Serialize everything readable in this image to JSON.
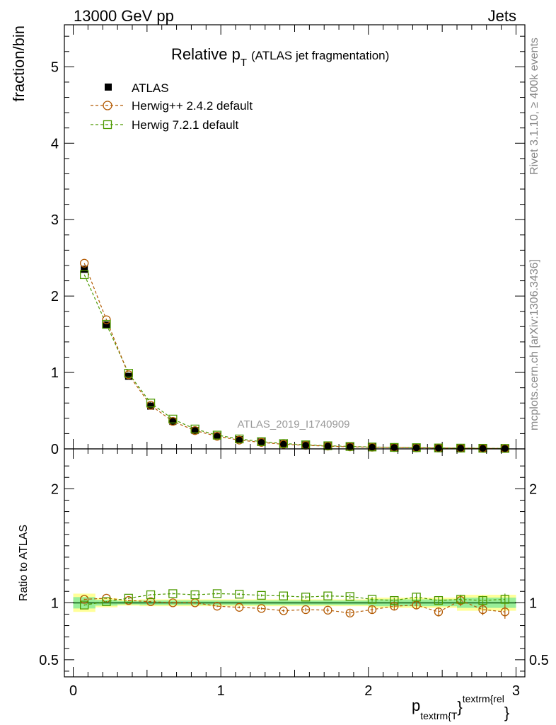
{
  "header": {
    "left": "13000 GeV pp",
    "right": "Jets"
  },
  "side_labels": {
    "rivet": "Rivet 3.1.10, ≥ 400k events",
    "mcplots": "mcplots.cern.ch [arXiv:1306.3436]"
  },
  "chart_data": [
    {
      "type": "scatter",
      "title_main": "Relative p",
      "title_sub": "T",
      "title_paren": "(ATLAS jet fragmentation)",
      "watermark": "ATLAS_2019_I1740909",
      "ylabel": "fraction/bin",
      "xlim": [
        -0.06,
        3.06
      ],
      "ylim": [
        0,
        5.55
      ],
      "yticks": [
        0,
        1,
        2,
        3,
        4,
        5
      ],
      "ytick_labels": [
        "0",
        "1",
        "2",
        "3",
        "4",
        "5"
      ],
      "x": [
        0.075,
        0.225,
        0.375,
        0.525,
        0.675,
        0.825,
        0.975,
        1.125,
        1.275,
        1.425,
        1.575,
        1.725,
        1.875,
        2.025,
        2.175,
        2.325,
        2.475,
        2.625,
        2.775,
        2.925
      ],
      "series": [
        {
          "name": "ATLAS",
          "color": "#000000",
          "marker": "filled-square",
          "values": [
            2.35,
            1.62,
            0.95,
            0.56,
            0.36,
            0.24,
            0.17,
            0.12,
            0.09,
            0.065,
            0.05,
            0.038,
            0.03,
            0.024,
            0.019,
            0.015,
            0.012,
            0.01,
            0.008,
            0.006
          ]
        },
        {
          "name": "Herwig++ 2.4.2 default",
          "color": "#b35900",
          "marker": "open-circle",
          "values": [
            2.43,
            1.69,
            0.97,
            0.57,
            0.36,
            0.24,
            0.165,
            0.115,
            0.085,
            0.06,
            0.047,
            0.036,
            0.027,
            0.022,
            0.018,
            0.014,
            0.011,
            0.009,
            0.007,
            0.005
          ]
        },
        {
          "name": "Herwig 7.2.1 default",
          "color": "#4d9900",
          "marker": "open-square",
          "values": [
            2.28,
            1.63,
            0.99,
            0.6,
            0.39,
            0.26,
            0.18,
            0.13,
            0.095,
            0.07,
            0.053,
            0.041,
            0.032,
            0.025,
            0.019,
            0.016,
            0.012,
            0.01,
            0.008,
            0.006
          ]
        }
      ]
    },
    {
      "type": "scatter",
      "ylabel": "Ratio to ATLAS",
      "xlabel_main": "p",
      "xlabel_sub": "textrm{T",
      "xlabel_brace": "}",
      "xlabel_sup": "textrm{rel",
      "xlabel_end": "}",
      "xlim": [
        -0.06,
        3.06
      ],
      "ylim": [
        0.35,
        2.35
      ],
      "xticks": [
        0,
        1,
        2,
        3
      ],
      "xtick_labels": [
        "0",
        "1",
        "2",
        "3"
      ],
      "yticks": [
        0.5,
        1,
        2
      ],
      "ytick_labels": [
        "0.5",
        "1",
        "2"
      ],
      "reference": 1.0,
      "band_yellow": [
        {
          "x0": 0.0,
          "x1": 0.15,
          "lo": 0.92,
          "hi": 1.08
        },
        {
          "x0": 0.15,
          "x1": 0.3,
          "lo": 0.96,
          "hi": 1.04
        },
        {
          "x0": 0.3,
          "x1": 0.45,
          "lo": 0.975,
          "hi": 1.025
        },
        {
          "x0": 0.45,
          "x1": 2.0,
          "lo": 0.97,
          "hi": 1.03
        },
        {
          "x0": 2.0,
          "x1": 2.6,
          "lo": 0.955,
          "hi": 1.045
        },
        {
          "x0": 2.6,
          "x1": 3.0,
          "lo": 0.93,
          "hi": 1.07
        }
      ],
      "band_green": [
        {
          "x0": 0.0,
          "x1": 0.15,
          "lo": 0.95,
          "hi": 1.05
        },
        {
          "x0": 0.15,
          "x1": 0.3,
          "lo": 0.975,
          "hi": 1.025
        },
        {
          "x0": 0.3,
          "x1": 0.45,
          "lo": 0.985,
          "hi": 1.015
        },
        {
          "x0": 0.45,
          "x1": 2.0,
          "lo": 0.98,
          "hi": 1.02
        },
        {
          "x0": 2.0,
          "x1": 2.6,
          "lo": 0.97,
          "hi": 1.03
        },
        {
          "x0": 2.6,
          "x1": 3.0,
          "lo": 0.955,
          "hi": 1.045
        }
      ],
      "x": [
        0.075,
        0.225,
        0.375,
        0.525,
        0.675,
        0.825,
        0.975,
        1.125,
        1.275,
        1.425,
        1.575,
        1.725,
        1.875,
        2.025,
        2.175,
        2.325,
        2.475,
        2.625,
        2.775,
        2.925
      ],
      "series": [
        {
          "name": "Herwig++ 2.4.2 default",
          "color": "#b35900",
          "marker": "open-circle",
          "values": [
            1.03,
            1.04,
            1.02,
            1.01,
            1.0,
            1.0,
            0.97,
            0.96,
            0.95,
            0.93,
            0.94,
            0.935,
            0.91,
            0.94,
            0.97,
            0.98,
            0.92,
            1.02,
            0.94,
            0.92
          ],
          "errors": [
            0.005,
            0.005,
            0.006,
            0.006,
            0.007,
            0.008,
            0.008,
            0.009,
            0.01,
            0.012,
            0.015,
            0.02,
            0.025,
            0.03,
            0.03,
            0.035,
            0.04,
            0.05,
            0.05,
            0.06
          ]
        },
        {
          "name": "Herwig 7.2.1 default",
          "color": "#4d9900",
          "marker": "open-square",
          "values": [
            0.98,
            1.01,
            1.04,
            1.07,
            1.08,
            1.07,
            1.08,
            1.075,
            1.065,
            1.06,
            1.05,
            1.06,
            1.055,
            1.03,
            1.02,
            1.05,
            1.02,
            1.03,
            1.02,
            1.03
          ],
          "errors": [
            0.005,
            0.005,
            0.006,
            0.006,
            0.007,
            0.008,
            0.008,
            0.009,
            0.01,
            0.012,
            0.015,
            0.015,
            0.02,
            0.02,
            0.025,
            0.03,
            0.03,
            0.04,
            0.04,
            0.05
          ]
        }
      ]
    }
  ]
}
